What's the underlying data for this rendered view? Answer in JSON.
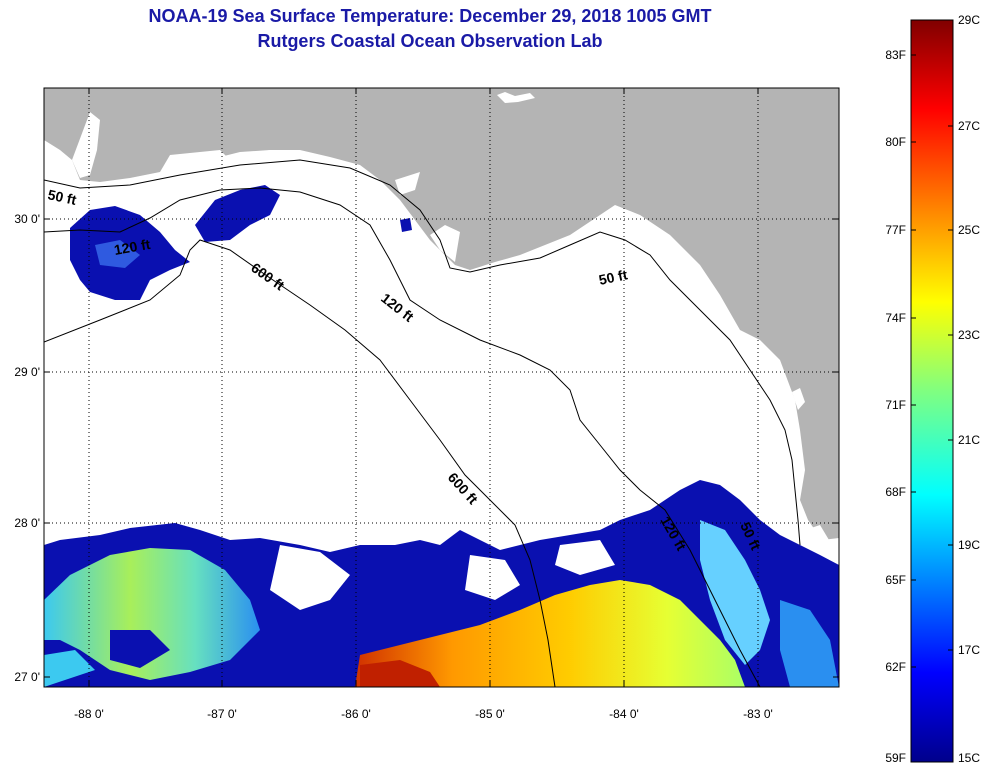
{
  "title": {
    "line1": "NOAA-19 Sea Surface Temperature:  December 29, 2018 1005 GMT",
    "line2": "Rutgers Coastal Ocean Observation Lab"
  },
  "axes": {
    "lat_labels": [
      "30 0'",
      "29 0'",
      "28 0'",
      "27 0'"
    ],
    "lon_labels": [
      "-88 0'",
      "-87 0'",
      "-86 0'",
      "-85 0'",
      "-84 0'",
      "-83 0'"
    ]
  },
  "contours": {
    "c50_west": "50 ft",
    "c600_a": "600 ft",
    "c120": "120 ft",
    "c50_east": "50 ft",
    "c600_b": "600 ft",
    "c120_south": "120 ft",
    "c50_south": "50 ft",
    "c120_west": "120 ft"
  },
  "colorbar": {
    "fahrenheit": [
      "83F",
      "80F",
      "77F",
      "74F",
      "71F",
      "68F",
      "65F",
      "62F",
      "59F"
    ],
    "celsius": [
      "29C",
      "27C",
      "25C",
      "23C",
      "21C",
      "19C",
      "17C",
      "15C"
    ]
  },
  "colors": {
    "land": "#b4b4b4",
    "title": "#1a1aa6",
    "cold": "#00008b",
    "warm": "#800000"
  }
}
